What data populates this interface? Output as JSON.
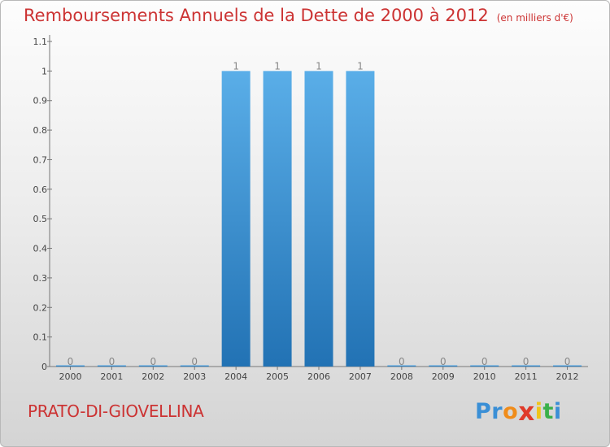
{
  "title": "Remboursements Annuels de la Dette de 2000 à 2012",
  "unit": "(en milliers d'€)",
  "commune": "PRATO-DI-GIOVELLINA",
  "logo": {
    "letters": [
      "P",
      "r",
      "o",
      "x",
      "i",
      "t",
      "i"
    ],
    "colors": [
      "#3a8fd6",
      "#3a8fd6",
      "#f08c1a",
      "#e03a2a",
      "#f0c419",
      "#3ab04a",
      "#3a8fd6"
    ]
  },
  "colors": {
    "bar_light": "#5aaee8",
    "bar_dark": "#2272b4",
    "title": "#cc3333"
  },
  "chart_data": {
    "type": "bar",
    "categories": [
      "2000",
      "2001",
      "2002",
      "2003",
      "2004",
      "2005",
      "2006",
      "2007",
      "2008",
      "2009",
      "2010",
      "2011",
      "2012"
    ],
    "values": [
      0,
      0,
      0,
      0,
      1,
      1,
      1,
      1,
      0,
      0,
      0,
      0,
      0
    ],
    "data_labels": [
      "0",
      "0",
      "0",
      "0",
      "1",
      "1",
      "1",
      "1",
      "0",
      "0",
      "0",
      "0",
      "0"
    ],
    "ylim": [
      0,
      1.1
    ],
    "yticks": [
      0,
      0.1,
      0.2,
      0.3,
      0.4,
      0.5,
      0.6,
      0.7,
      0.8,
      0.9,
      1,
      1.1
    ],
    "ytick_labels": [
      "0",
      "0.1",
      "0.2",
      "0.3",
      "0.4",
      "0.5",
      "0.6",
      "0.7",
      "0.8",
      "0.9",
      "1",
      "1.1"
    ],
    "grid": false,
    "legend": "none"
  }
}
